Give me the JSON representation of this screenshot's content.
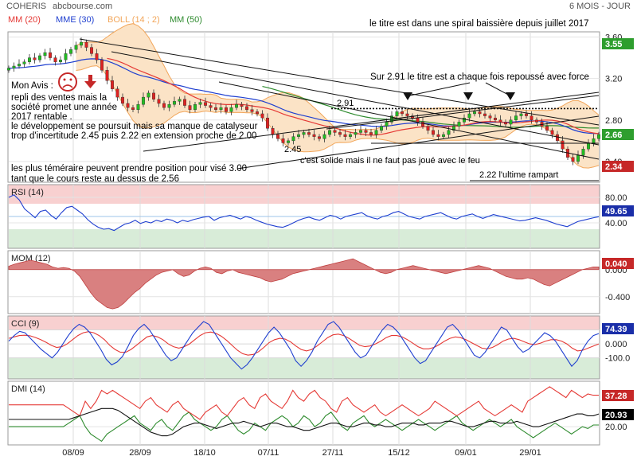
{
  "header": {
    "symbol": "COHERIS",
    "source": "abcbourse.com",
    "period": "6 MOIS - JOUR"
  },
  "legend": [
    {
      "label": "MM (20)",
      "color": "#e53935"
    },
    {
      "label": "MME (30)",
      "color": "#1f3fd0"
    },
    {
      "label": "BOLL (14 ; 2)",
      "color": "#f2a65a"
    },
    {
      "label": "MM (50)",
      "color": "#2e8b2e"
    }
  ],
  "annotations": {
    "top_right": "le titre est dans une spiral baissière depuis juillet 2017",
    "resistance": "Sur 2.91 le titre est a chaque fois repoussé avec force",
    "level_291": "2.91",
    "level_245": "2.45",
    "support": "c'est solide mais il ne faut pas joué avec le feu",
    "rampart": "2.22  l'ultime rampart",
    "avis_title": "Mon Avis :",
    "avis_lines": [
      "repli des ventes mais la",
      "société promet une année",
      "2017 rentable .",
      "le développement se poursuit mais sa manque de catalyseur",
      "trop d'incertitude 2.45 puis 2.22 en extension proche de 2.00"
    ],
    "bottom_lines": [
      "les plus téméraire peuvent prendre position pour visé 3.00",
      "tant que le cours reste au dessus de 2.56"
    ]
  },
  "colors": {
    "candle_up": "#22bb22",
    "candle_down": "#dd2222",
    "boll_fill": "#fbe3c6",
    "boll_line": "#f2a65a",
    "rsi_over": "#f8d0d0",
    "rsi_under": "#d8ecd8",
    "mom_fill": "#d98080",
    "badge_green": "#2e9e2e",
    "badge_red": "#c62828",
    "badge_blue": "#1a2ea8",
    "badge_black": "#000000"
  },
  "chart_data": [
    {
      "type": "candlestick",
      "panel": "price",
      "x_labels": [
        "08/09",
        "28/09",
        "18/10",
        "07/11",
        "27/11",
        "15/12",
        "09/01",
        "29/01"
      ],
      "y_ticks": [
        "3.60",
        "3.20",
        "2.80",
        "2.40"
      ],
      "ylim": [
        2.2,
        3.65
      ],
      "badges": [
        {
          "value": "3.55",
          "color": "green"
        },
        {
          "value": "2.66",
          "color": "green"
        },
        {
          "value": "2.34",
          "color": "red"
        }
      ],
      "close": [
        3.3,
        3.32,
        3.34,
        3.36,
        3.4,
        3.38,
        3.42,
        3.45,
        3.4,
        3.36,
        3.38,
        3.44,
        3.48,
        3.52,
        3.55,
        3.5,
        3.44,
        3.38,
        3.28,
        3.18,
        3.1,
        3.02,
        2.96,
        2.92,
        2.9,
        2.95,
        3.02,
        3.06,
        3.0,
        2.96,
        2.92,
        2.95,
        2.98,
        3.0,
        2.94,
        2.9,
        2.95,
        2.97,
        2.94,
        2.92,
        2.9,
        2.92,
        2.88,
        2.92,
        2.95,
        2.93,
        2.9,
        2.88,
        2.86,
        2.82,
        2.72,
        2.66,
        2.62,
        2.58,
        2.6,
        2.64,
        2.66,
        2.68,
        2.66,
        2.64,
        2.62,
        2.66,
        2.7,
        2.68,
        2.66,
        2.64,
        2.66,
        2.68,
        2.7,
        2.68,
        2.66,
        2.7,
        2.74,
        2.78,
        2.84,
        2.88,
        2.86,
        2.84,
        2.82,
        2.78,
        2.74,
        2.7,
        2.66,
        2.64,
        2.66,
        2.7,
        2.74,
        2.78,
        2.82,
        2.86,
        2.88,
        2.86,
        2.84,
        2.82,
        2.8,
        2.78,
        2.76,
        2.8,
        2.84,
        2.86,
        2.84,
        2.8,
        2.78,
        2.74,
        2.7,
        2.66,
        2.6,
        2.52,
        2.44,
        2.4,
        2.46,
        2.52,
        2.58,
        2.62,
        2.66
      ]
    },
    {
      "type": "line",
      "panel": "rsi",
      "title": "RSI (14)",
      "y_ticks": [
        "80.00",
        "40.00"
      ],
      "ylim": [
        0,
        100
      ],
      "overbought": 70,
      "oversold": 30,
      "badge": "49.65",
      "series": [
        {
          "name": "RSI (14)",
          "color": "#1f3fd0",
          "values": [
            80,
            84,
            76,
            62,
            55,
            48,
            58,
            60,
            52,
            46,
            56,
            64,
            66,
            60,
            54,
            45,
            38,
            33,
            30,
            31,
            28,
            33,
            38,
            40,
            44,
            39,
            42,
            40,
            44,
            42,
            46,
            44,
            40,
            44,
            42,
            45,
            47,
            49,
            50,
            44,
            48,
            50,
            52,
            49,
            46,
            50,
            48,
            44,
            41,
            38,
            36,
            34,
            33,
            36,
            40,
            44,
            47,
            49,
            46,
            44,
            48,
            52,
            50,
            46,
            50,
            52,
            54,
            56,
            51,
            48,
            46,
            50,
            52,
            56,
            58,
            54,
            50,
            48,
            46,
            50,
            52,
            54,
            56,
            52,
            48,
            46,
            50,
            52,
            54,
            50,
            47,
            50,
            53,
            51,
            49,
            47,
            45,
            43,
            44,
            46,
            48,
            46,
            44,
            41,
            38,
            36,
            34,
            38,
            42,
            44,
            46,
            48,
            49.65
          ]
        }
      ]
    },
    {
      "type": "area",
      "panel": "momentum",
      "title": "MOM (12)",
      "y_ticks": [
        "0.000",
        "-0.400"
      ],
      "ylim": [
        -0.65,
        0.28
      ],
      "badge": "0.040",
      "series": [
        {
          "name": "MOM (12)",
          "color": "#c04040",
          "values": [
            0.05,
            0.08,
            0.1,
            0.12,
            0.14,
            0.12,
            0.1,
            0.08,
            0.04,
            0.02,
            0.03,
            0.02,
            -0.02,
            -0.1,
            -0.22,
            -0.34,
            -0.44,
            -0.5,
            -0.56,
            -0.58,
            -0.56,
            -0.5,
            -0.42,
            -0.34,
            -0.28,
            -0.2,
            -0.14,
            -0.08,
            -0.04,
            -0.02,
            0.0,
            -0.06,
            -0.1,
            -0.08,
            -0.02,
            0.02,
            0.04,
            0.02,
            -0.04,
            -0.06,
            -0.02,
            0.0,
            -0.04,
            -0.06,
            -0.08,
            -0.1,
            -0.12,
            -0.16,
            -0.18,
            -0.16,
            -0.14,
            -0.1,
            -0.06,
            -0.04,
            -0.02,
            0.0,
            0.02,
            0.04,
            0.06,
            0.08,
            0.1,
            0.12,
            0.14,
            0.16,
            0.12,
            0.08,
            0.04,
            0.0,
            -0.04,
            -0.06,
            -0.04,
            0.0,
            0.02,
            0.04,
            0.06,
            0.04,
            0.02,
            0.0,
            -0.02,
            -0.04,
            -0.06,
            -0.04,
            -0.02,
            0.0,
            0.02,
            0.04,
            0.06,
            0.04,
            0.02,
            -0.02,
            -0.06,
            -0.1,
            -0.12,
            -0.14,
            -0.14,
            -0.12,
            -0.14,
            -0.18,
            -0.22,
            -0.24,
            -0.2,
            -0.16,
            -0.12,
            -0.08,
            -0.04,
            0.0,
            0.02,
            0.04,
            0.04
          ]
        }
      ]
    },
    {
      "type": "line",
      "panel": "cci",
      "title": "CCI (9)",
      "y_ticks": [
        "100.0",
        "0.000",
        "-100.0"
      ],
      "ylim": [
        -250,
        200
      ],
      "overbought": 100,
      "oversold": -100,
      "badge": "74.39",
      "series": [
        {
          "name": "CCI (9)",
          "color": "#1f3fd0",
          "values": [
            20,
            60,
            90,
            80,
            40,
            0,
            -40,
            -70,
            -100,
            -60,
            0,
            60,
            110,
            140,
            120,
            80,
            20,
            -40,
            -110,
            -150,
            -130,
            -90,
            -20,
            60,
            110,
            140,
            100,
            40,
            -20,
            -80,
            -120,
            -100,
            -40,
            20,
            80,
            120,
            160,
            140,
            80,
            20,
            -40,
            -100,
            -140,
            -180,
            -150,
            -100,
            -40,
            20,
            80,
            120,
            80,
            20,
            -40,
            -120,
            -160,
            -120,
            -60,
            20,
            80,
            140,
            160,
            120,
            60,
            0,
            -60,
            -100,
            -80,
            -20,
            40,
            100,
            140,
            120,
            80,
            20,
            -40,
            -100,
            -140,
            -120,
            -60,
            0,
            60,
            120,
            140,
            100,
            40,
            -20,
            -80,
            -100,
            -60,
            0,
            60,
            120,
            100,
            40,
            -20,
            -60,
            -40,
            0,
            40,
            80,
            60,
            20,
            -40,
            -100,
            -160,
            -120,
            -40,
            20,
            60,
            74.39
          ]
        },
        {
          "name": "signal",
          "color": "#e53935",
          "values": [
            40,
            50,
            60,
            62,
            58,
            46,
            30,
            12,
            -10,
            -25,
            -20,
            0,
            30,
            60,
            80,
            88,
            80,
            60,
            30,
            -10,
            -40,
            -60,
            -60,
            -40,
            -10,
            20,
            50,
            60,
            50,
            30,
            0,
            -20,
            -30,
            -20,
            0,
            30,
            60,
            80,
            85,
            75,
            55,
            25,
            -10,
            -45,
            -70,
            -80,
            -75,
            -55,
            -25,
            10,
            30,
            40,
            35,
            15,
            -15,
            -40,
            -50,
            -40,
            -15,
            15,
            45,
            65,
            70,
            60,
            40,
            15,
            -10,
            -20,
            -15,
            0,
            20,
            45,
            60,
            60,
            50,
            30,
            5,
            -20,
            -35,
            -35,
            -25,
            -5,
            20,
            40,
            50,
            45,
            30,
            10,
            -10,
            -30,
            -35,
            -25,
            -5,
            20,
            35,
            40,
            30,
            15,
            0,
            -5,
            5,
            20,
            30,
            30,
            20,
            0,
            -30,
            -50,
            -45,
            -30,
            -15,
            0
          ]
        }
      ]
    },
    {
      "type": "line",
      "panel": "dmi",
      "title": "DMI (14)",
      "y_ticks": [
        "20.00"
      ],
      "ylim": [
        10,
        45
      ],
      "badges": [
        {
          "value": "37.28",
          "color": "red"
        },
        {
          "value": "20.93",
          "color": "black"
        }
      ],
      "series": [
        {
          "name": "DI+",
          "color": "#e53935",
          "values": [
            32,
            32,
            32,
            32,
            32,
            32,
            32,
            32,
            32,
            32,
            32,
            30,
            28,
            26,
            34,
            30,
            34,
            40,
            38,
            40,
            38,
            36,
            34,
            32,
            30,
            34,
            36,
            32,
            30,
            28,
            32,
            34,
            30,
            28,
            26,
            24,
            28,
            30,
            32,
            28,
            26,
            30,
            34,
            36,
            32,
            30,
            36,
            38,
            34,
            32,
            30,
            34,
            40,
            36,
            34,
            38,
            40,
            36,
            34,
            30,
            28,
            34,
            36,
            32,
            30,
            28,
            30,
            32,
            28,
            26,
            28,
            30,
            32,
            30,
            28,
            26,
            28,
            30,
            34,
            32,
            30,
            28,
            26,
            28,
            30,
            32,
            34,
            30,
            28,
            26,
            28,
            30,
            32,
            30,
            28,
            34,
            36,
            38,
            40,
            42,
            40,
            38,
            36,
            40,
            38,
            36,
            38,
            37.28,
            37.28
          ]
        },
        {
          "name": "DI-",
          "color": "#2e8b2e",
          "values": [
            20,
            20,
            20,
            20,
            20,
            20,
            20,
            20,
            20,
            20,
            20,
            22,
            24,
            26,
            20,
            16,
            14,
            12,
            16,
            18,
            20,
            22,
            24,
            26,
            22,
            20,
            18,
            22,
            24,
            20,
            18,
            22,
            26,
            28,
            24,
            22,
            20,
            18,
            20,
            24,
            26,
            22,
            18,
            16,
            18,
            22,
            20,
            18,
            22,
            24,
            26,
            24,
            20,
            22,
            26,
            24,
            20,
            22,
            26,
            28,
            24,
            20,
            18,
            22,
            24,
            26,
            22,
            20,
            22,
            24,
            22,
            20,
            18,
            20,
            22,
            24,
            22,
            20,
            18,
            20,
            22,
            24,
            26,
            22,
            20,
            18,
            20,
            22,
            24,
            22,
            20,
            22,
            24,
            20,
            18,
            16,
            14,
            16,
            18,
            20,
            22,
            20,
            18,
            16,
            18,
            20,
            19,
            20.93,
            20.93
          ]
        },
        {
          "name": "ADX",
          "color": "#111111",
          "values": [
            24,
            24,
            24,
            24,
            24,
            24,
            24,
            24,
            24,
            24,
            24,
            24,
            25,
            26,
            27,
            28,
            29,
            30,
            30,
            30,
            29,
            27,
            25,
            23,
            21,
            19,
            17,
            16,
            15,
            15,
            16,
            18,
            20,
            21,
            22,
            22,
            21,
            20,
            19,
            20,
            21,
            22,
            22,
            23,
            22,
            21,
            20,
            21,
            22,
            22,
            21,
            20,
            20,
            19,
            18,
            18,
            19,
            20,
            21,
            22,
            22,
            21,
            20,
            20,
            21,
            22,
            22,
            21,
            21,
            20,
            20,
            21,
            22,
            22,
            22,
            21,
            21,
            22,
            22,
            22,
            23,
            23,
            22,
            21,
            20,
            20,
            21,
            22,
            23,
            23,
            22,
            22,
            22,
            23,
            22,
            21,
            20,
            20,
            21,
            22,
            23,
            24,
            25,
            26,
            27,
            27,
            26,
            26,
            27
          ]
        }
      ]
    }
  ]
}
